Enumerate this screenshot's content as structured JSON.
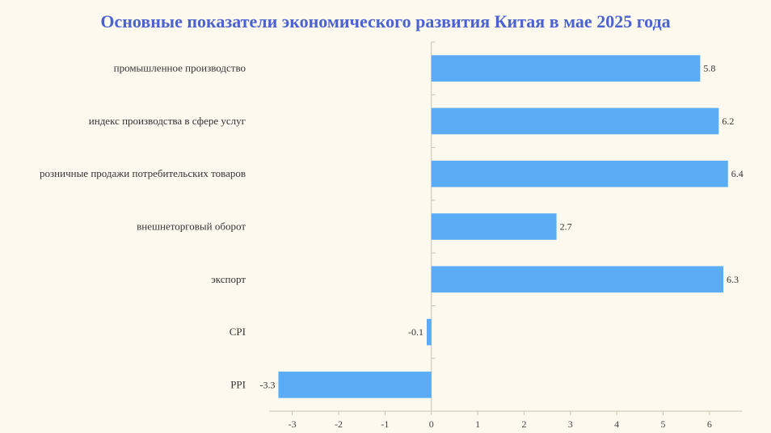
{
  "colors": {
    "title": "#4a63d0",
    "bar": "#5aadf5",
    "axis": "#c9c2b0",
    "background": "#fdf9ee"
  },
  "chart_data": {
    "type": "bar",
    "orientation": "horizontal",
    "title": "Основные показатели экономического развития Китая в мае 2025 года",
    "categories": [
      "промышленное производство",
      "индекс производства в сфере услуг",
      "розничные продажи потребительских товаров",
      "внешнеторговый оборот",
      "экспорт",
      "CPI",
      "PPI"
    ],
    "values": [
      5.8,
      6.2,
      6.4,
      2.7,
      6.3,
      -0.1,
      -3.3
    ],
    "value_labels": [
      "5.8",
      "6.2",
      "6.4",
      "2.7",
      "6.3",
      "-0.1",
      "-3.3"
    ],
    "xlim": [
      -3.5,
      6.7
    ],
    "xticks": [
      -3,
      -2,
      -1,
      0,
      1,
      2,
      3,
      4,
      5,
      6
    ],
    "xtick_labels": [
      "-3",
      "-2",
      "-1",
      "0",
      "1",
      "2",
      "3",
      "4",
      "5",
      "6"
    ],
    "grid": false,
    "legend": "none"
  }
}
